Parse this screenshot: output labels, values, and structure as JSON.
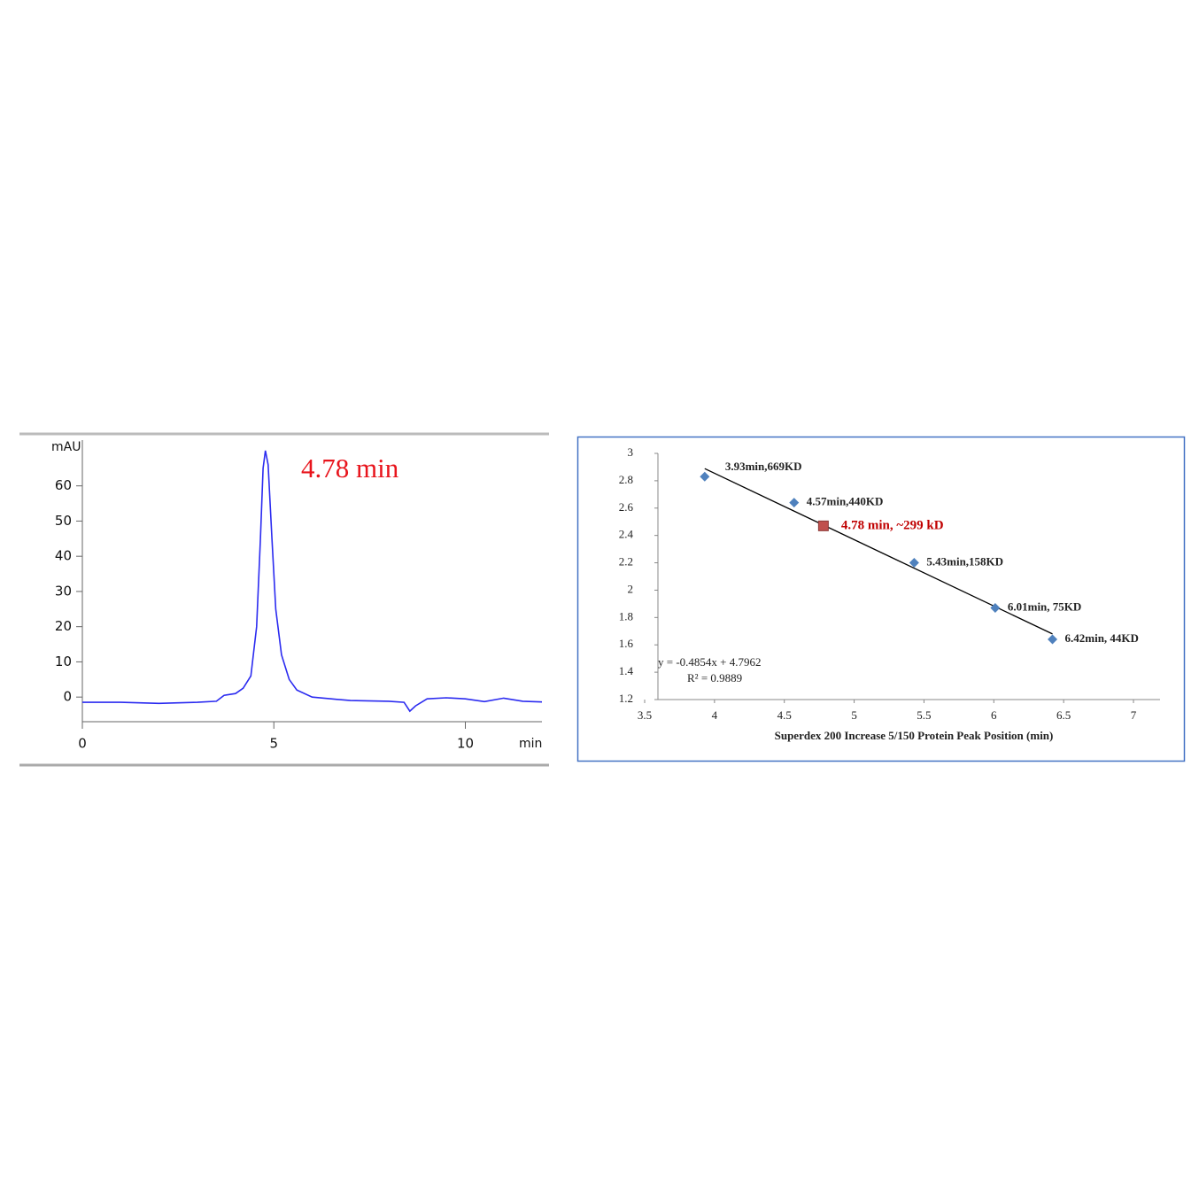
{
  "chart_data": [
    {
      "type": "line",
      "ylabel": "mAU",
      "xlabel": "min",
      "annotation": "4.78 min",
      "color": "#2b2bf0",
      "x": [
        0,
        1,
        2,
        3,
        3.5,
        3.7,
        4.0,
        4.2,
        4.4,
        4.55,
        4.65,
        4.72,
        4.78,
        4.85,
        4.95,
        5.05,
        5.2,
        5.4,
        5.6,
        6.0,
        6.5,
        7,
        8,
        8.4,
        8.55,
        8.7,
        9.0,
        9.5,
        10,
        10.5,
        11,
        11.5,
        12
      ],
      "values": [
        -1.5,
        -1.5,
        -1.8,
        -1.5,
        -1.2,
        0.5,
        1,
        2.5,
        6,
        20,
        45,
        65,
        70,
        66,
        45,
        25,
        12,
        5,
        2,
        0,
        -0.5,
        -1,
        -1.2,
        -1.5,
        -4,
        -2.5,
        -0.5,
        -0.2,
        -0.5,
        -1.3,
        -0.3,
        -1.2,
        -1.4
      ],
      "xlim": [
        0,
        12
      ],
      "ylim": [
        -7,
        73
      ],
      "xticks": [
        0,
        5,
        10
      ],
      "yticks": [
        0,
        10,
        20,
        30,
        40,
        50,
        60
      ]
    },
    {
      "type": "scatter",
      "xlabel": "Superdex  200 Increase  5/150  Protein Peak Position (min)",
      "xlim": [
        3.5,
        7
      ],
      "ylim": [
        1.2,
        3
      ],
      "xticks": [
        3.5,
        4,
        4.5,
        5,
        5.5,
        6,
        6.5,
        7
      ],
      "yticks": [
        1.2,
        1.4,
        1.6,
        1.8,
        2,
        2.2,
        2.4,
        2.6,
        2.8,
        3
      ],
      "series": [
        {
          "color": "#4f81bd",
          "x": [
            3.93,
            4.57,
            5.43,
            6.01,
            6.42
          ],
          "values": [
            2.83,
            2.64,
            2.2,
            1.87,
            1.64
          ],
          "point_labels": [
            "3.93min,669KD",
            "4.57min,440KD",
            "5.43min,158KD",
            "6.01min, 75KD",
            "6.42min, 44KD"
          ]
        },
        {
          "color": "#c0504d",
          "label_color": "#c00000",
          "x": [
            4.78
          ],
          "values": [
            2.47
          ],
          "point_labels": [
            "4.78 min, ~299 kD"
          ]
        }
      ],
      "trendline": {
        "slope": -0.4854,
        "intercept": 4.7962,
        "label": "y = -0.4854x + 4.7962",
        "r2_label": "R² = 0.9889",
        "color": "#000000"
      }
    }
  ]
}
